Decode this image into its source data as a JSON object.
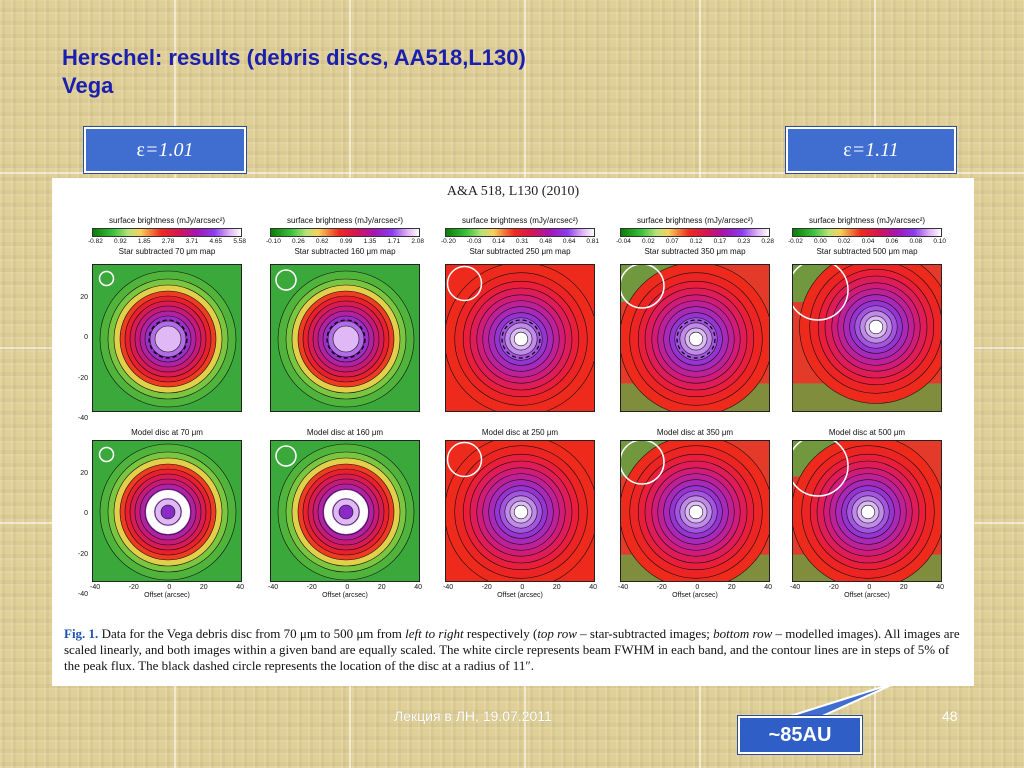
{
  "slide": {
    "title_line1": "Herschel: results (debris discs, AA518,L130)",
    "title_line2": "Vega",
    "eps_left": {
      "symbol": "ε",
      "value": "=1.01"
    },
    "eps_right": {
      "symbol": "ε",
      "value": "=1.11"
    },
    "footer": "Лекция в ЛН, 19.07.2011",
    "page_number": "48",
    "callout_label": "~85AU"
  },
  "figure": {
    "header": "A&A 518, L130 (2010)",
    "colorbar_title": "surface brightness (mJy/arcsec²)",
    "x_axis_label": "Offset (arcsec)",
    "x_ticks": [
      "-40",
      "-20",
      "0",
      "20",
      "40"
    ],
    "y_ticks": [
      "20",
      "0",
      "-20",
      "-40"
    ],
    "y_ticks_bottom": [
      "20",
      "0",
      "-20",
      "-40"
    ],
    "colors": {
      "green": "#3aa83a",
      "red": "#ee2a1c",
      "purple": "#9c34d8",
      "white": "#ffffff"
    },
    "top_row": [
      {
        "colorbar_ticks": [
          "-0.82",
          "0.92",
          "1.85",
          "2.78",
          "3.71",
          "4.65",
          "5.58"
        ],
        "map_title": "Star subtracted 70 μm map"
      },
      {
        "colorbar_ticks": [
          "-0.10",
          "0.26",
          "0.62",
          "0.99",
          "1.35",
          "1.71",
          "2.08"
        ],
        "map_title": "Star subtracted 160 μm map"
      },
      {
        "colorbar_ticks": [
          "-0.20",
          "-0.03",
          "0.14",
          "0.31",
          "0.48",
          "0.64",
          "0.81"
        ],
        "map_title": "Star subtracted 250 μm map"
      },
      {
        "colorbar_ticks": [
          "-0.04",
          "0.02",
          "0.07",
          "0.12",
          "0.17",
          "0.23",
          "0.28"
        ],
        "map_title": "Star subtracted 350 μm map"
      },
      {
        "colorbar_ticks": [
          "-0.02",
          "0.00",
          "0.02",
          "0.04",
          "0.06",
          "0.08",
          "0.10"
        ],
        "map_title": "Star subtracted 500 μm map"
      }
    ],
    "bottom_row": [
      {
        "map_title": "Model disc at 70 μm"
      },
      {
        "map_title": "Model disc at 160 μm"
      },
      {
        "map_title": "Model disc at 250 μm"
      },
      {
        "map_title": "Model disc at 350 μm"
      },
      {
        "map_title": "Model disc at 500 μm"
      }
    ],
    "caption": {
      "fig_label": "Fig. 1.",
      "part1": " Data for the Vega debris disc from 70 μm to 500 μm from ",
      "left_to_right": "left to right",
      "part2": " respectively (",
      "top_row": "top row",
      "part3": " – star-subtracted images; ",
      "bottom_row": "bottom row",
      "part4": " – modelled images). All images are scaled linearly, and both images within a given band are equally scaled. The white circle represents beam FWHM in each band, and the contour lines are in steps of 5% of the peak flux. The black dashed circle represents the location of the disc at a radius of 11″."
    }
  }
}
